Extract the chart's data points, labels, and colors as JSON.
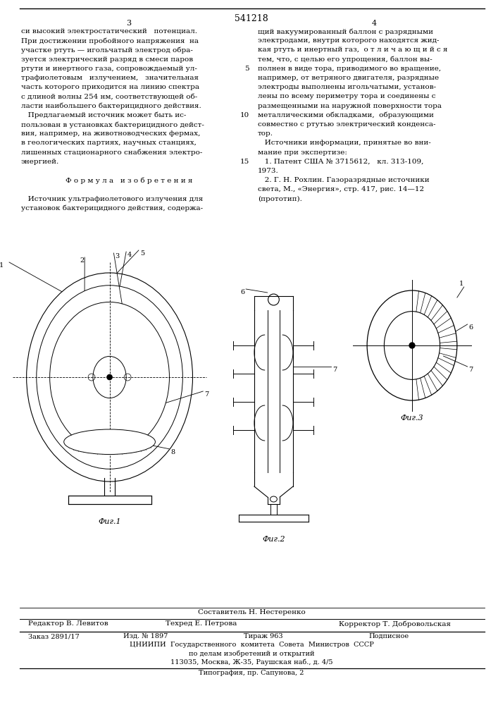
{
  "patent_number": "541218",
  "page_left": "3",
  "page_right": "4",
  "col1_lines": [
    "си высокий электростатический   потенциал.",
    "При достижении пробойного напряжения  на",
    "участке ртуть — игольчатый электрод обра-",
    "зуется электрический разряд в смеси паров",
    "ртути и инертного газа, сопровождаемый ул-",
    "трафиолетовым   излучением,   значительная",
    "часть которого приходится на линию спектра",
    "с длиной волны 254 нм, соответствующей об-",
    "ласти наибольшего бактерицидного действия.",
    "   Предлагаемый источник может быть ис-",
    "пользован в установках бактерицидного дейст-",
    "вия, например, на животноводческих фермах,",
    "в геологических партиях, научных станциях,",
    "лишенных стационарного снабжения электро-",
    "энергией.",
    "",
    "      Ф о р м у л а   и з о б р е т е н и я",
    "",
    "   Источник ультрафиолетового излучения для",
    "установок бактерицидного действия, содержа-"
  ],
  "col2_lines": [
    "щий вакуумированный баллон с разрядными",
    "электродами, внутри которого находятся жид-",
    "кая ртуть и инертный газ,  о т л и ч а ю щ и й с я",
    "тем, что, с целью его упрощения, баллон вы-",
    "полнен в виде тора, приводимого во вращение,",
    "например, от ветряного двигателя, разрядные",
    "электроды выполнены игольчатыми, установ-",
    "лены по всему периметру тора и соединены с",
    "размещенными на наружной поверхности тора",
    "металлическими обкладками,  образующими",
    "совместно с ртутью электрический конденса-",
    "тор.",
    "   Источники информации, принятые во вни-",
    "мание при экспертизе:",
    "   1. Патент США № 3715612,   кл. 313-109,",
    "1973.",
    "   2. Г. Н. Рохлин. Газоразрядные источники",
    "света, М., «Энергия», стр. 417, рис. 14—12",
    "(прототип)."
  ],
  "line_num_5_row": 4,
  "line_num_10_row": 9,
  "line_num_15_row": 14,
  "fig1_label": "Фиг.1",
  "fig2_label": "Фиг.2",
  "fig3_label": "Фиг.3",
  "footer_composer": "Составитель Н. Нестеренко",
  "footer_editor": "Редактор В. Левитов",
  "footer_techred": "Техред Е. Петрова",
  "footer_corrector": "Корректор Т. Добровольская",
  "footer_order": "Заказ 2891/17",
  "footer_edition": "Изд. № 1897",
  "footer_print_run": "Тираж 963",
  "footer_subscription": "Подписное",
  "footer_org": "ЦНИИПИ  Государственного  комитета  Совета  Министров  СССР",
  "footer_dept": "по делам изобретений и открытий",
  "footer_address": "113035, Москва, Ж-35, Раушская наб., д. 4/5",
  "footer_print": "Типография, пр. Сапунова, 2",
  "bg_color": "#ffffff",
  "text_color": "#000000"
}
